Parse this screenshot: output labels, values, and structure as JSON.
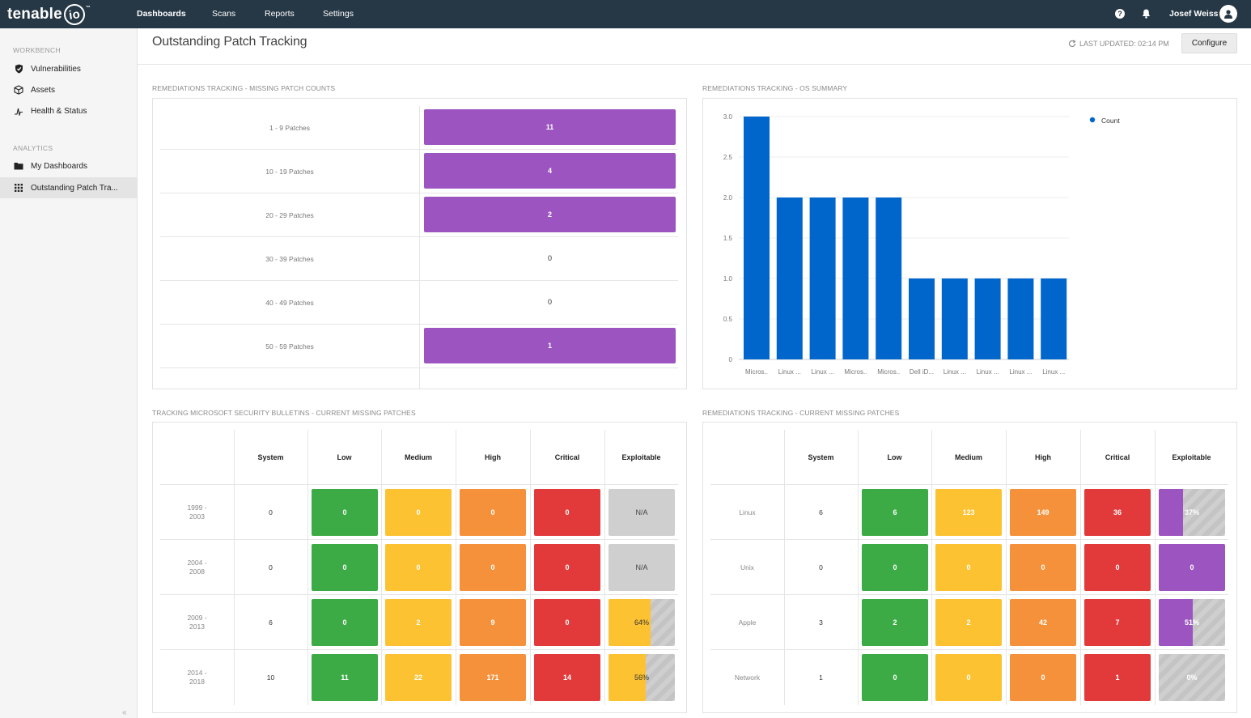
{
  "nav": {
    "logo_text": "tenable",
    "logo_io": "io",
    "logo_tm": "™",
    "links": [
      "Dashboards",
      "Scans",
      "Reports",
      "Settings"
    ],
    "help_glyph": "?",
    "user": "Josef Weiss"
  },
  "sidebar": {
    "workbench_label": "WORKBENCH",
    "analytics_label": "ANALYTICS",
    "items": [
      {
        "label": "Vulnerabilities",
        "icon": "shield-icon"
      },
      {
        "label": "Assets",
        "icon": "cube-icon"
      },
      {
        "label": "Health & Status",
        "icon": "pulse-icon"
      },
      {
        "label": "My Dashboards",
        "icon": "folder-icon"
      },
      {
        "label": "Outstanding Patch Tra...",
        "icon": "grid-icon"
      }
    ],
    "collapse_glyph": "«"
  },
  "header": {
    "title": "Outstanding Patch Tracking",
    "last_updated": "LAST UPDATED: 02:14 PM",
    "configure": "Configure"
  },
  "widgets": {
    "patch_counts": {
      "title": "REMEDIATIONS TRACKING - MISSING PATCH COUNTS",
      "rows": [
        {
          "label": "1 - 9 Patches",
          "value": "11",
          "filled": true
        },
        {
          "label": "10 - 19 Patches",
          "value": "4",
          "filled": true
        },
        {
          "label": "20 - 29 Patches",
          "value": "2",
          "filled": true
        },
        {
          "label": "30 - 39 Patches",
          "value": "0",
          "filled": false
        },
        {
          "label": "40 - 49 Patches",
          "value": "0",
          "filled": false
        },
        {
          "label": "50 - 59 Patches",
          "value": "1",
          "filled": true
        }
      ]
    },
    "os_summary": {
      "title": "REMEDIATIONS TRACKING - OS SUMMARY"
    },
    "ms_bulletins": {
      "title": "TRACKING MICROSOFT SECURITY BULLETINS - CURRENT MISSING PATCHES",
      "columns": [
        "System",
        "Low",
        "Medium",
        "High",
        "Critical",
        "Exploitable"
      ],
      "rows": [
        {
          "label": [
            "1999 -",
            "2003"
          ],
          "system": "0",
          "low": "0",
          "medium": "0",
          "high": "0",
          "critical": "0",
          "exploitable": "N/A",
          "expl_pct": null
        },
        {
          "label": [
            "2004 -",
            "2008"
          ],
          "system": "0",
          "low": "0",
          "medium": "0",
          "high": "0",
          "critical": "0",
          "exploitable": "N/A",
          "expl_pct": null
        },
        {
          "label": [
            "2009 -",
            "2013"
          ],
          "system": "6",
          "low": "0",
          "medium": "2",
          "high": "9",
          "critical": "0",
          "exploitable": "64%",
          "expl_pct": 64
        },
        {
          "label": [
            "2014 -",
            "2018"
          ],
          "system": "10",
          "low": "11",
          "medium": "22",
          "high": "171",
          "critical": "14",
          "exploitable": "56%",
          "expl_pct": 56
        }
      ]
    },
    "current_missing": {
      "title": "REMEDIATIONS TRACKING - CURRENT MISSING PATCHES",
      "columns": [
        "System",
        "Low",
        "Medium",
        "High",
        "Critical",
        "Exploitable"
      ],
      "rows": [
        {
          "label": [
            "Linux"
          ],
          "system": "6",
          "low": "6",
          "medium": "123",
          "high": "149",
          "critical": "36",
          "exploitable": "37%",
          "expl_pct": 37
        },
        {
          "label": [
            "Unix"
          ],
          "system": "0",
          "low": "0",
          "medium": "0",
          "high": "0",
          "critical": "0",
          "exploitable": "0",
          "expl_pct": 100
        },
        {
          "label": [
            "Apple"
          ],
          "system": "3",
          "low": "2",
          "medium": "2",
          "high": "42",
          "critical": "7",
          "exploitable": "51%",
          "expl_pct": 51
        },
        {
          "label": [
            "Network"
          ],
          "system": "1",
          "low": "0",
          "medium": "0",
          "high": "0",
          "critical": "1",
          "exploitable": "0%",
          "expl_pct": 0
        }
      ]
    }
  },
  "colors": {
    "nav_bg": "#263746",
    "purple": "#9c55c0",
    "blue_bar": "#0066cc",
    "low": "#3cab46",
    "medium": "#fdc231",
    "high": "#f5913a",
    "critical": "#e23a3b"
  },
  "chart_data": {
    "type": "bar",
    "categories": [
      "Micros..",
      "Linux ...",
      "Linux ...",
      "Micros..",
      "Micros..",
      "Dell iD...",
      "Linux ...",
      "Linux ...",
      "Linux ...",
      "Linux ..."
    ],
    "series": [
      {
        "name": "Count",
        "values": [
          3,
          2,
          2,
          2,
          2,
          1,
          1,
          1,
          1,
          1
        ]
      }
    ],
    "yticks": [
      "0",
      "0.5",
      "1.0",
      "1.5",
      "2.0",
      "2.5",
      "3.0"
    ],
    "ylim": [
      0,
      3
    ],
    "grid": true,
    "legend": "top-right",
    "color": "#0066cc"
  }
}
